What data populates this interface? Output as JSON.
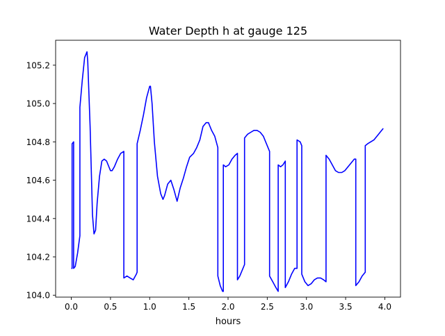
{
  "chart_data": {
    "type": "line",
    "title": "Water Depth h at gauge 125",
    "xlabel": "hours",
    "ylabel": "",
    "xlim": [
      -0.2,
      4.2
    ],
    "ylim": [
      103.99,
      105.33
    ],
    "x_ticks": [
      0.0,
      0.5,
      1.0,
      1.5,
      2.0,
      2.5,
      3.0,
      3.5,
      4.0
    ],
    "x_tick_labels": [
      "0.0",
      "0.5",
      "1.0",
      "1.5",
      "2.0",
      "2.5",
      "3.0",
      "3.5",
      "4.0"
    ],
    "y_ticks": [
      104.0,
      104.2,
      104.4,
      104.6,
      104.8,
      105.0,
      105.2
    ],
    "y_tick_labels": [
      "104.0",
      "104.2",
      "104.4",
      "104.6",
      "104.8",
      "105.0",
      "105.2"
    ],
    "grid": false,
    "line_color": "#0000ff",
    "series": [
      {
        "x": [
          0.0,
          0.01,
          0.01,
          0.03,
          0.03,
          0.05,
          0.08,
          0.11,
          0.11,
          0.14,
          0.17,
          0.19,
          0.2,
          0.21,
          0.24,
          0.27,
          0.29,
          0.31,
          0.33,
          0.36,
          0.39,
          0.42,
          0.45,
          0.47,
          0.5,
          0.52,
          0.55,
          0.59,
          0.63,
          0.67,
          0.67,
          0.71,
          0.75,
          0.79,
          0.83,
          0.84,
          0.84,
          0.88,
          0.92,
          0.96,
          1.0,
          1.01,
          1.03,
          1.06,
          1.1,
          1.14,
          1.17,
          1.19,
          1.23,
          1.27,
          1.31,
          1.35,
          1.39,
          1.43,
          1.47,
          1.51,
          1.56,
          1.6,
          1.64,
          1.68,
          1.72,
          1.75,
          1.79,
          1.83,
          1.87,
          1.87,
          1.9,
          1.93,
          1.94,
          1.94,
          1.97,
          2.01,
          2.05,
          2.09,
          2.12,
          2.12,
          2.15,
          2.18,
          2.21,
          2.21,
          2.25,
          2.29,
          2.33,
          2.37,
          2.41,
          2.45,
          2.49,
          2.53,
          2.53,
          2.57,
          2.61,
          2.64,
          2.64,
          2.67,
          2.7,
          2.73,
          2.73,
          2.77,
          2.81,
          2.85,
          2.88,
          2.88,
          2.92,
          2.94,
          2.94,
          2.98,
          3.02,
          3.06,
          3.1,
          3.14,
          3.18,
          3.22,
          3.25,
          3.25,
          3.29,
          3.33,
          3.37,
          3.41,
          3.45,
          3.49,
          3.53,
          3.57,
          3.61,
          3.63,
          3.63,
          3.67,
          3.71,
          3.75,
          3.75,
          3.78,
          3.82,
          3.86,
          3.9,
          3.94,
          3.98
        ],
        "y": [
          104.14,
          104.14,
          104.79,
          104.8,
          104.14,
          104.15,
          104.22,
          104.31,
          104.98,
          105.12,
          105.24,
          105.26,
          105.27,
          105.22,
          104.88,
          104.42,
          104.32,
          104.34,
          104.48,
          104.62,
          104.7,
          104.71,
          104.7,
          104.68,
          104.65,
          104.65,
          104.67,
          104.71,
          104.74,
          104.75,
          104.09,
          104.1,
          104.09,
          104.08,
          104.11,
          104.12,
          104.79,
          104.86,
          104.94,
          105.03,
          105.09,
          105.09,
          105.0,
          104.8,
          104.62,
          104.53,
          104.5,
          104.52,
          104.58,
          104.6,
          104.55,
          104.49,
          104.56,
          104.61,
          104.67,
          104.72,
          104.74,
          104.77,
          104.81,
          104.88,
          104.9,
          104.9,
          104.86,
          104.83,
          104.77,
          104.1,
          104.05,
          104.02,
          104.02,
          104.68,
          104.67,
          104.68,
          104.71,
          104.73,
          104.74,
          104.08,
          104.1,
          104.13,
          104.16,
          104.82,
          104.84,
          104.85,
          104.86,
          104.86,
          104.85,
          104.83,
          104.79,
          104.75,
          104.1,
          104.07,
          104.04,
          104.02,
          104.68,
          104.67,
          104.68,
          104.7,
          104.04,
          104.07,
          104.11,
          104.14,
          104.14,
          104.81,
          104.8,
          104.78,
          104.11,
          104.07,
          104.05,
          104.06,
          104.08,
          104.09,
          104.09,
          104.08,
          104.07,
          104.73,
          104.71,
          104.68,
          104.65,
          104.64,
          104.64,
          104.65,
          104.67,
          104.69,
          104.71,
          104.71,
          104.05,
          104.07,
          104.1,
          104.12,
          104.78,
          104.79,
          104.8,
          104.81,
          104.83,
          104.85,
          104.87
        ]
      }
    ]
  }
}
